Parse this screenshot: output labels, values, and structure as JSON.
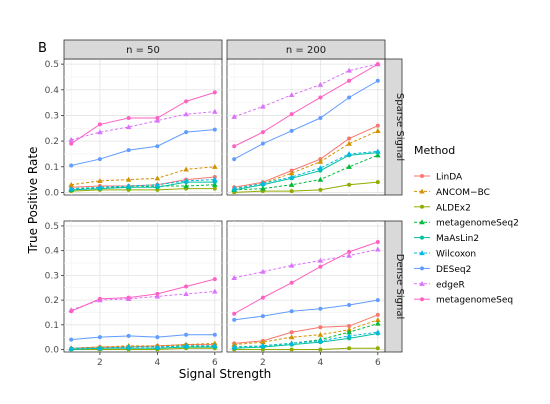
{
  "chart_data": {
    "type": "line",
    "panel_tag": "B",
    "xlabel": "Signal Strength",
    "ylabel": "True Positive Rate",
    "x": [
      1,
      2,
      3,
      4,
      5,
      6
    ],
    "xlim": [
      0.75,
      6.25
    ],
    "ylim": [
      -0.01,
      0.52
    ],
    "x_ticks": [
      2,
      4,
      6
    ],
    "y_ticks": [
      0.0,
      0.1,
      0.2,
      0.3,
      0.4,
      0.5
    ],
    "y_tick_labels": [
      "0.0",
      "0.1",
      "0.2",
      "0.3",
      "0.4",
      "0.5"
    ],
    "columns": [
      "n = 50",
      "n = 200"
    ],
    "rows": [
      "Sparse Signal",
      "Dense Signal"
    ],
    "grid": true,
    "legend_position": "right",
    "legend_title": "Method",
    "series": [
      {
        "name": "LinDA",
        "color": "#F8766D",
        "marker": "circle",
        "dash": "solid"
      },
      {
        "name": "ANCOM−BC",
        "color": "#D39200",
        "marker": "triangle",
        "dash": "dashed"
      },
      {
        "name": "ALDEx2",
        "color": "#93AA00",
        "marker": "circle",
        "dash": "solid"
      },
      {
        "name": "metagenomeSeq2",
        "color": "#00BA38",
        "marker": "triangle",
        "dash": "dashed"
      },
      {
        "name": "MaAsLin2",
        "color": "#00C19F",
        "marker": "circle",
        "dash": "solid"
      },
      {
        "name": "Wilcoxon",
        "color": "#00B9E3",
        "marker": "triangle",
        "dash": "dashed"
      },
      {
        "name": "DESeq2",
        "color": "#619CFF",
        "marker": "circle",
        "dash": "solid"
      },
      {
        "name": "edgeR",
        "color": "#DB72FB",
        "marker": "triangle",
        "dash": "dashed"
      },
      {
        "name": "metagenomeSeq",
        "color": "#FF61C3",
        "marker": "circle",
        "dash": "solid"
      }
    ],
    "panels": [
      {
        "column": "n = 50",
        "row": "Sparse Signal",
        "values": {
          "LinDA": [
            0.02,
            0.025,
            0.025,
            0.03,
            0.05,
            0.06
          ],
          "ANCOM−BC": [
            0.03,
            0.045,
            0.05,
            0.055,
            0.09,
            0.1
          ],
          "ALDEx2": [
            0.005,
            0.01,
            0.01,
            0.01,
            0.015,
            0.015
          ],
          "metagenomeSeq2": [
            0.01,
            0.02,
            0.02,
            0.025,
            0.025,
            0.03
          ],
          "MaAsLin2": [
            0.01,
            0.015,
            0.02,
            0.02,
            0.04,
            0.04
          ],
          "Wilcoxon": [
            0.015,
            0.02,
            0.025,
            0.03,
            0.045,
            0.05
          ],
          "DESeq2": [
            0.105,
            0.13,
            0.165,
            0.18,
            0.235,
            0.245
          ],
          "edgeR": [
            0.205,
            0.235,
            0.255,
            0.28,
            0.305,
            0.315
          ],
          "metagenomeSeq": [
            0.19,
            0.265,
            0.29,
            0.29,
            0.355,
            0.39
          ]
        }
      },
      {
        "column": "n = 200",
        "row": "Sparse Signal",
        "values": {
          "LinDA": [
            0.02,
            0.04,
            0.085,
            0.13,
            0.21,
            0.26
          ],
          "ANCOM−BC": [
            0.015,
            0.035,
            0.075,
            0.12,
            0.19,
            0.24
          ],
          "ALDEx2": [
            0.0,
            0.005,
            0.005,
            0.01,
            0.03,
            0.04
          ],
          "metagenomeSeq2": [
            0.01,
            0.015,
            0.03,
            0.05,
            0.1,
            0.145
          ],
          "MaAsLin2": [
            0.01,
            0.03,
            0.055,
            0.085,
            0.145,
            0.155
          ],
          "Wilcoxon": [
            0.015,
            0.035,
            0.06,
            0.095,
            0.15,
            0.16
          ],
          "DESeq2": [
            0.13,
            0.19,
            0.24,
            0.29,
            0.37,
            0.435
          ],
          "edgeR": [
            0.295,
            0.335,
            0.38,
            0.42,
            0.475,
            0.5
          ],
          "metagenomeSeq": [
            0.18,
            0.235,
            0.305,
            0.37,
            0.435,
            0.5
          ]
        }
      },
      {
        "column": "n = 50",
        "row": "Dense Signal",
        "values": {
          "LinDA": [
            0.005,
            0.01,
            0.01,
            0.015,
            0.02,
            0.02
          ],
          "ANCOM−BC": [
            0.005,
            0.01,
            0.015,
            0.015,
            0.02,
            0.025
          ],
          "ALDEx2": [
            0.0,
            0.0,
            0.0,
            0.0,
            0.005,
            0.005
          ],
          "metagenomeSeq2": [
            0.005,
            0.005,
            0.01,
            0.01,
            0.015,
            0.015
          ],
          "MaAsLin2": [
            0.0,
            0.005,
            0.005,
            0.005,
            0.01,
            0.01
          ],
          "Wilcoxon": [
            0.005,
            0.005,
            0.01,
            0.01,
            0.015,
            0.015
          ],
          "DESeq2": [
            0.04,
            0.05,
            0.055,
            0.05,
            0.06,
            0.06
          ],
          "edgeR": [
            0.16,
            0.2,
            0.205,
            0.215,
            0.225,
            0.235
          ],
          "metagenomeSeq": [
            0.155,
            0.205,
            0.21,
            0.225,
            0.255,
            0.285
          ]
        }
      },
      {
        "column": "n = 200",
        "row": "Dense Signal",
        "values": {
          "LinDA": [
            0.025,
            0.035,
            0.07,
            0.09,
            0.095,
            0.14
          ],
          "ANCOM−BC": [
            0.02,
            0.03,
            0.05,
            0.06,
            0.08,
            0.12
          ],
          "ALDEx2": [
            0.0,
            0.0,
            0.0,
            0.0,
            0.005,
            0.005
          ],
          "metagenomeSeq2": [
            0.01,
            0.015,
            0.025,
            0.04,
            0.07,
            0.105
          ],
          "MaAsLin2": [
            0.005,
            0.01,
            0.02,
            0.03,
            0.045,
            0.065
          ],
          "Wilcoxon": [
            0.01,
            0.015,
            0.025,
            0.035,
            0.055,
            0.07
          ],
          "DESeq2": [
            0.12,
            0.135,
            0.155,
            0.165,
            0.18,
            0.2
          ],
          "edgeR": [
            0.29,
            0.315,
            0.34,
            0.36,
            0.38,
            0.405
          ],
          "metagenomeSeq": [
            0.145,
            0.21,
            0.27,
            0.335,
            0.395,
            0.435
          ]
        }
      }
    ]
  }
}
